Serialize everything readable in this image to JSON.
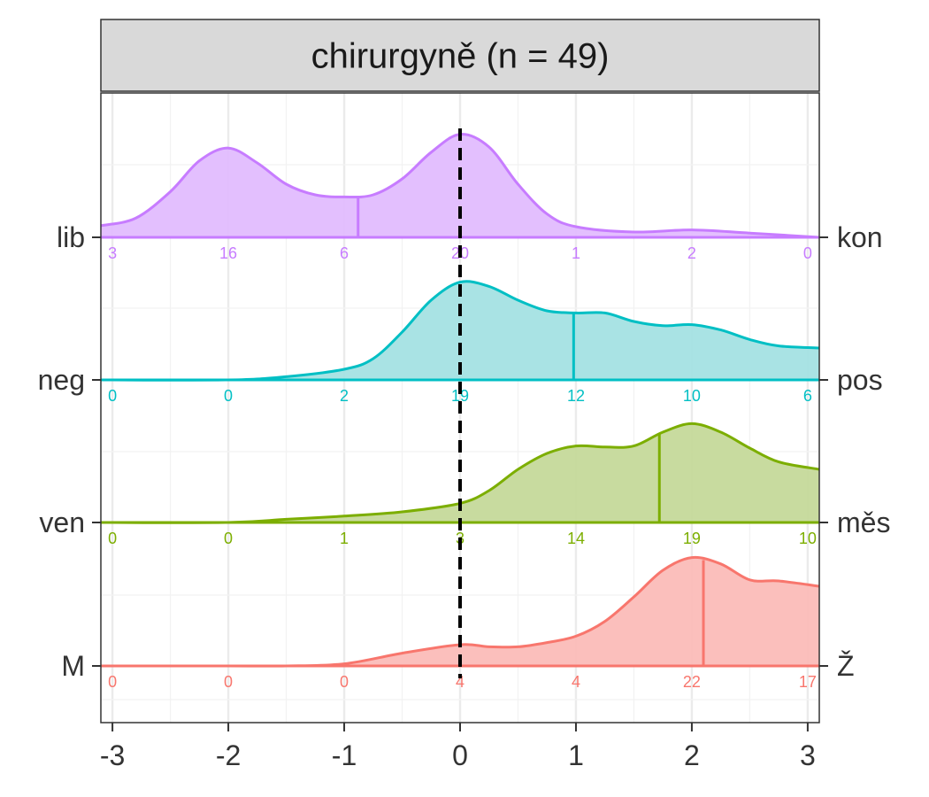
{
  "chart_data": {
    "type": "area",
    "title": "chirurgyně (n = 49)",
    "xlim": [
      -3.1,
      3.1
    ],
    "x_ticks": [
      "-3",
      "-2",
      "-1",
      "0",
      "1",
      "2",
      "3"
    ],
    "count_positions": [
      -3,
      -2,
      -1,
      0,
      1,
      2,
      3
    ],
    "reference_line_x": 0,
    "grid": true,
    "series": [
      {
        "left_label": "lib",
        "right_label": "kon",
        "color": "#C77CFF",
        "fill": "#E2BCFE",
        "mean": -0.88,
        "counts": [
          "3",
          "16",
          "6",
          "20",
          "1",
          "2",
          "0"
        ],
        "density": [
          [
            -3.1,
            0.11
          ],
          [
            -2.8,
            0.18
          ],
          [
            -2.5,
            0.43
          ],
          [
            -2.25,
            0.72
          ],
          [
            -2.0,
            0.84
          ],
          [
            -1.75,
            0.7
          ],
          [
            -1.5,
            0.5
          ],
          [
            -1.25,
            0.4
          ],
          [
            -1.0,
            0.38
          ],
          [
            -0.75,
            0.4
          ],
          [
            -0.5,
            0.55
          ],
          [
            -0.25,
            0.8
          ],
          [
            0.0,
            0.97
          ],
          [
            0.25,
            0.85
          ],
          [
            0.5,
            0.5
          ],
          [
            0.75,
            0.22
          ],
          [
            1.0,
            0.1
          ],
          [
            1.5,
            0.05
          ],
          [
            2.0,
            0.07
          ],
          [
            2.5,
            0.04
          ],
          [
            3.1,
            0.0
          ]
        ]
      },
      {
        "left_label": "neg",
        "right_label": "pos",
        "color": "#00BFC4",
        "fill": "#A4E2E3",
        "mean": 0.98,
        "counts": [
          "0",
          "0",
          "2",
          "19",
          "12",
          "10",
          "6"
        ],
        "density": [
          [
            -3.1,
            0.0
          ],
          [
            -2.0,
            0.0
          ],
          [
            -1.5,
            0.03
          ],
          [
            -1.0,
            0.1
          ],
          [
            -0.75,
            0.2
          ],
          [
            -0.5,
            0.45
          ],
          [
            -0.25,
            0.75
          ],
          [
            0.0,
            0.92
          ],
          [
            0.25,
            0.88
          ],
          [
            0.5,
            0.75
          ],
          [
            0.75,
            0.65
          ],
          [
            1.0,
            0.63
          ],
          [
            1.25,
            0.63
          ],
          [
            1.5,
            0.55
          ],
          [
            1.75,
            0.51
          ],
          [
            2.0,
            0.52
          ],
          [
            2.25,
            0.47
          ],
          [
            2.5,
            0.38
          ],
          [
            2.75,
            0.32
          ],
          [
            3.1,
            0.3
          ]
        ]
      },
      {
        "left_label": "ven",
        "right_label": "měs",
        "color": "#7CAE00",
        "fill": "#C5D99A",
        "mean": 1.72,
        "counts": [
          "0",
          "0",
          "1",
          "3",
          "14",
          "19",
          "10"
        ],
        "density": [
          [
            -3.1,
            0.0
          ],
          [
            -2.0,
            0.0
          ],
          [
            -1.5,
            0.03
          ],
          [
            -1.0,
            0.06
          ],
          [
            -0.5,
            0.1
          ],
          [
            0.0,
            0.18
          ],
          [
            0.25,
            0.3
          ],
          [
            0.5,
            0.5
          ],
          [
            0.75,
            0.65
          ],
          [
            1.0,
            0.72
          ],
          [
            1.25,
            0.71
          ],
          [
            1.5,
            0.72
          ],
          [
            1.75,
            0.85
          ],
          [
            2.0,
            0.93
          ],
          [
            2.25,
            0.85
          ],
          [
            2.5,
            0.7
          ],
          [
            2.75,
            0.57
          ],
          [
            3.1,
            0.5
          ]
        ]
      },
      {
        "left_label": "M",
        "right_label": "Ž",
        "color": "#F8766D",
        "fill": "#FBBCB8",
        "mean": 2.1,
        "counts": [
          "0",
          "0",
          "0",
          "4",
          "4",
          "22",
          "17"
        ],
        "density": [
          [
            -3.1,
            0.0
          ],
          [
            -2.0,
            0.0
          ],
          [
            -1.5,
            0.0
          ],
          [
            -1.0,
            0.02
          ],
          [
            -0.5,
            0.12
          ],
          [
            0.0,
            0.2
          ],
          [
            0.25,
            0.18
          ],
          [
            0.5,
            0.18
          ],
          [
            0.75,
            0.22
          ],
          [
            1.0,
            0.28
          ],
          [
            1.25,
            0.42
          ],
          [
            1.5,
            0.65
          ],
          [
            1.75,
            0.9
          ],
          [
            2.0,
            1.02
          ],
          [
            2.25,
            0.96
          ],
          [
            2.5,
            0.81
          ],
          [
            2.75,
            0.8
          ],
          [
            3.1,
            0.75
          ]
        ]
      }
    ]
  }
}
